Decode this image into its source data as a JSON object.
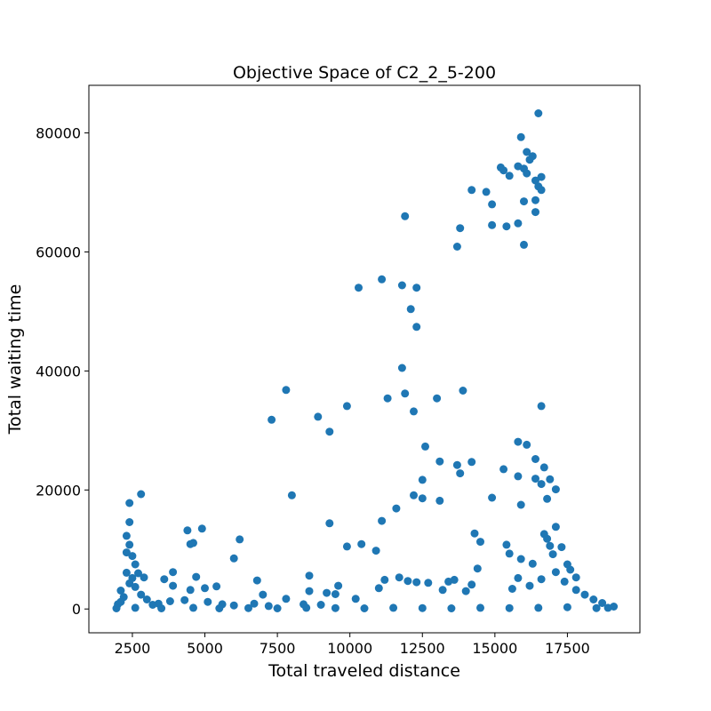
{
  "chart_data": {
    "type": "scatter",
    "title": "Objective Space of C2_2_5-200",
    "xlabel": "Total traveled distance",
    "ylabel": "Total waiting time",
    "xlim": [
      1000,
      20000
    ],
    "ylim": [
      -4000,
      88000
    ],
    "xticks": [
      2500,
      5000,
      7500,
      10000,
      12500,
      15000,
      17500
    ],
    "xtick_labels": [
      "2500",
      "5000",
      "7500",
      "10000",
      "12500",
      "15000",
      "17500"
    ],
    "yticks": [
      0,
      20000,
      40000,
      60000,
      80000
    ],
    "ytick_labels": [
      "0",
      "20000",
      "40000",
      "60000",
      "80000"
    ],
    "grid": false,
    "legend": "none",
    "series": [
      {
        "color": "#1f77b4",
        "points": [
          [
            16500,
            83300
          ],
          [
            15900,
            79300
          ],
          [
            16100,
            76800
          ],
          [
            16300,
            76100
          ],
          [
            16200,
            75500
          ],
          [
            15800,
            74400
          ],
          [
            16000,
            74000
          ],
          [
            15200,
            74200
          ],
          [
            15300,
            73700
          ],
          [
            16600,
            72600
          ],
          [
            16400,
            72000
          ],
          [
            15500,
            72800
          ],
          [
            16100,
            73200
          ],
          [
            16500,
            71000
          ],
          [
            16600,
            70400
          ],
          [
            16400,
            68700
          ],
          [
            16000,
            68500
          ],
          [
            16400,
            66700
          ],
          [
            14200,
            70400
          ],
          [
            14700,
            70100
          ],
          [
            14900,
            68000
          ],
          [
            14900,
            64500
          ],
          [
            15400,
            64300
          ],
          [
            15800,
            64800
          ],
          [
            16000,
            61200
          ],
          [
            13800,
            64000
          ],
          [
            13700,
            60900
          ],
          [
            11900,
            66000
          ],
          [
            11100,
            55400
          ],
          [
            11800,
            54400
          ],
          [
            12300,
            54000
          ],
          [
            10300,
            54000
          ],
          [
            12100,
            50400
          ],
          [
            12300,
            47400
          ],
          [
            11800,
            40500
          ],
          [
            11300,
            35400
          ],
          [
            11900,
            36200
          ],
          [
            12200,
            33200
          ],
          [
            13000,
            35400
          ],
          [
            13900,
            36700
          ],
          [
            7800,
            36800
          ],
          [
            7300,
            31800
          ],
          [
            8900,
            32300
          ],
          [
            9300,
            29800
          ],
          [
            9900,
            34100
          ],
          [
            16600,
            34100
          ],
          [
            15800,
            28100
          ],
          [
            16100,
            27600
          ],
          [
            12600,
            27300
          ],
          [
            13100,
            24800
          ],
          [
            13700,
            24200
          ],
          [
            13800,
            22800
          ],
          [
            14200,
            24700
          ],
          [
            15300,
            23500
          ],
          [
            15800,
            22300
          ],
          [
            16400,
            25200
          ],
          [
            16700,
            23800
          ],
          [
            16900,
            21800
          ],
          [
            17100,
            20100
          ],
          [
            16400,
            21900
          ],
          [
            16600,
            21000
          ],
          [
            16800,
            18500
          ],
          [
            15900,
            17500
          ],
          [
            14900,
            18700
          ],
          [
            12500,
            21700
          ],
          [
            12200,
            19100
          ],
          [
            12500,
            18600
          ],
          [
            13100,
            18200
          ],
          [
            11600,
            16900
          ],
          [
            11100,
            14800
          ],
          [
            8000,
            19100
          ],
          [
            9300,
            14400
          ],
          [
            2800,
            19300
          ],
          [
            2400,
            17800
          ],
          [
            2400,
            14600
          ],
          [
            2300,
            12300
          ],
          [
            2400,
            10800
          ],
          [
            2300,
            9500
          ],
          [
            2500,
            8900
          ],
          [
            2600,
            7500
          ],
          [
            2300,
            6100
          ],
          [
            2500,
            5200
          ],
          [
            2700,
            6000
          ],
          [
            2900,
            5300
          ],
          [
            4400,
            13200
          ],
          [
            4900,
            13500
          ],
          [
            4600,
            11100
          ],
          [
            4500,
            10900
          ],
          [
            6200,
            11700
          ],
          [
            6000,
            8500
          ],
          [
            3900,
            6200
          ],
          [
            4700,
            5400
          ],
          [
            5400,
            3800
          ],
          [
            3600,
            5000
          ],
          [
            3900,
            3900
          ],
          [
            4500,
            3200
          ],
          [
            5000,
            3500
          ],
          [
            6800,
            4800
          ],
          [
            7000,
            2400
          ],
          [
            7800,
            1700
          ],
          [
            9900,
            10500
          ],
          [
            10400,
            10900
          ],
          [
            10900,
            9800
          ],
          [
            14300,
            12700
          ],
          [
            14500,
            11300
          ],
          [
            15400,
            10800
          ],
          [
            15500,
            9300
          ],
          [
            15900,
            8400
          ],
          [
            16300,
            7600
          ],
          [
            16700,
            12600
          ],
          [
            16800,
            11800
          ],
          [
            17100,
            13800
          ],
          [
            16900,
            10600
          ],
          [
            17000,
            9200
          ],
          [
            17300,
            10400
          ],
          [
            17500,
            7500
          ],
          [
            17100,
            6200
          ],
          [
            17600,
            6600
          ],
          [
            17800,
            5300
          ],
          [
            14400,
            6800
          ],
          [
            14200,
            4100
          ],
          [
            14000,
            3000
          ],
          [
            13600,
            4900
          ],
          [
            13400,
            4600
          ],
          [
            12700,
            4400
          ],
          [
            13200,
            3200
          ],
          [
            12300,
            4500
          ],
          [
            12000,
            4700
          ],
          [
            11700,
            5300
          ],
          [
            11200,
            4900
          ],
          [
            11000,
            3500
          ],
          [
            10200,
            1700
          ],
          [
            9600,
            3900
          ],
          [
            9500,
            2500
          ],
          [
            9200,
            2700
          ],
          [
            8600,
            5600
          ],
          [
            8600,
            3000
          ],
          [
            8400,
            800
          ],
          [
            9000,
            700
          ],
          [
            6000,
            600
          ],
          [
            6700,
            900
          ],
          [
            7200,
            500
          ],
          [
            5100,
            1200
          ],
          [
            5600,
            800
          ],
          [
            4300,
            1500
          ],
          [
            3800,
            1300
          ],
          [
            3400,
            900
          ],
          [
            2100,
            3100
          ],
          [
            2200,
            2000
          ],
          [
            2100,
            1200
          ],
          [
            2400,
            4300
          ],
          [
            2000,
            800
          ],
          [
            2600,
            3700
          ],
          [
            2800,
            2400
          ],
          [
            3000,
            1600
          ],
          [
            3200,
            700
          ],
          [
            15600,
            3400
          ],
          [
            15800,
            5200
          ],
          [
            16200,
            3900
          ],
          [
            16600,
            5000
          ],
          [
            17400,
            4600
          ],
          [
            17800,
            3200
          ],
          [
            18100,
            2400
          ],
          [
            18400,
            1600
          ],
          [
            18700,
            1000
          ],
          [
            19100,
            400
          ],
          [
            18900,
            200
          ],
          [
            1950,
            100
          ],
          [
            2600,
            200
          ],
          [
            3500,
            100
          ],
          [
            4600,
            200
          ],
          [
            5500,
            100
          ],
          [
            6500,
            150
          ],
          [
            7500,
            100
          ],
          [
            8500,
            200
          ],
          [
            9500,
            150
          ],
          [
            10500,
            100
          ],
          [
            11500,
            200
          ],
          [
            12500,
            150
          ],
          [
            13500,
            100
          ],
          [
            14500,
            200
          ],
          [
            15500,
            150
          ],
          [
            16500,
            200
          ],
          [
            17500,
            300
          ],
          [
            18500,
            150
          ]
        ]
      }
    ]
  }
}
